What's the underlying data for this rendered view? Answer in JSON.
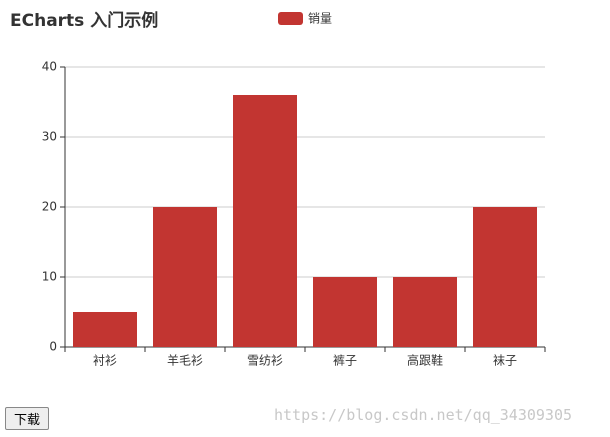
{
  "chart_data": {
    "type": "bar",
    "title": "ECharts 入门示例",
    "categories": [
      "衬衫",
      "羊毛衫",
      "雪纺衫",
      "裤子",
      "高跟鞋",
      "袜子"
    ],
    "series": [
      {
        "name": "销量",
        "color": "#c23531",
        "values": [
          5,
          20,
          36,
          10,
          10,
          20
        ]
      }
    ],
    "ylim": [
      0,
      40
    ],
    "yticks": [
      0,
      10,
      20,
      30,
      40
    ],
    "grid": true
  },
  "button": "下载",
  "watermark": "https://blog.csdn.net/qq_34309305"
}
